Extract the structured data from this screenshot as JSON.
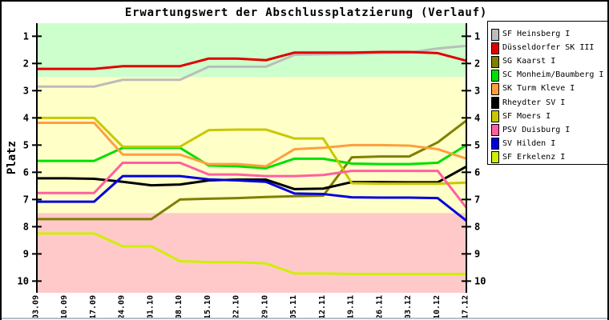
{
  "page": {
    "title": "Erwartungswert der Abschlussplatzierung (Verlauf)",
    "ylabel": "Platz"
  },
  "chart_data": {
    "type": "line",
    "title": "Erwartungswert der Abschlussplatzierung (Verlauf)",
    "ylabel": "Platz",
    "xlabel": "",
    "grid": false,
    "legend_position": "right",
    "x_labels": [
      "03.09",
      "10.09",
      "17.09",
      "24.09",
      "01.10",
      "08.10",
      "15.10",
      "22.10",
      "29.10",
      "05.11",
      "12.11",
      "19.11",
      "26.11",
      "03.12",
      "10.12",
      "17.12"
    ],
    "yticks": [
      1,
      2,
      3,
      4,
      5,
      6,
      7,
      8,
      9,
      10
    ],
    "ylim": [
      0.52,
      10.43
    ],
    "y_axis_inverted": true,
    "zones": [
      {
        "name": "promotion-zone",
        "from": 0.52,
        "to": 2.5,
        "color": "#ccffcc"
      },
      {
        "name": "midfield-zone",
        "from": 2.5,
        "to": 7.5,
        "color": "#ffffc8"
      },
      {
        "name": "relegation-zone",
        "from": 7.5,
        "to": 10.43,
        "color": "#ffc9c9"
      }
    ],
    "series": [
      {
        "name": "SF Heinsberg I",
        "color": "#bcbcbc",
        "values": [
          2.85,
          2.85,
          2.85,
          2.6,
          2.6,
          2.6,
          2.12,
          2.12,
          2.12,
          1.68,
          1.66,
          1.65,
          1.62,
          1.6,
          1.45,
          1.35
        ]
      },
      {
        "name": "Düsseldorfer SK III",
        "color": "#e00000",
        "values": [
          2.2,
          2.2,
          2.2,
          2.1,
          2.1,
          2.1,
          1.82,
          1.82,
          1.88,
          1.6,
          1.6,
          1.6,
          1.58,
          1.58,
          1.62,
          1.9
        ]
      },
      {
        "name": "SG Kaarst I",
        "color": "#7f7f00",
        "values": [
          7.72,
          7.72,
          7.72,
          7.72,
          7.72,
          7.0,
          6.97,
          6.95,
          6.91,
          6.88,
          6.86,
          5.45,
          5.42,
          5.42,
          4.9,
          4.1
        ]
      },
      {
        "name": "SC Monheim/Baumberg I",
        "color": "#00df00",
        "values": [
          5.58,
          5.58,
          5.58,
          5.1,
          5.1,
          5.1,
          5.75,
          5.78,
          5.85,
          5.5,
          5.5,
          5.68,
          5.7,
          5.7,
          5.65,
          5.0
        ]
      },
      {
        "name": "SK Turm Kleve I",
        "color": "#ff9f40",
        "values": [
          4.18,
          4.18,
          4.18,
          5.35,
          5.35,
          5.35,
          5.7,
          5.7,
          5.78,
          5.15,
          5.1,
          5.0,
          5.0,
          5.02,
          5.15,
          5.5
        ]
      },
      {
        "name": "Rheydter SV I",
        "color": "#000000",
        "values": [
          6.22,
          6.22,
          6.24,
          6.35,
          6.48,
          6.45,
          6.3,
          6.27,
          6.27,
          6.62,
          6.6,
          6.36,
          6.36,
          6.37,
          6.37,
          5.79
        ]
      },
      {
        "name": "SF Moers I",
        "color": "#c8c800",
        "values": [
          4.0,
          4.0,
          4.0,
          5.06,
          5.06,
          5.06,
          4.45,
          4.43,
          4.43,
          4.76,
          4.76,
          6.4,
          6.42,
          6.42,
          6.42,
          6.38
        ]
      },
      {
        "name": "PSV Duisburg I",
        "color": "#ff5fa2",
        "values": [
          6.76,
          6.76,
          6.76,
          5.65,
          5.65,
          5.65,
          6.08,
          6.08,
          6.14,
          6.14,
          6.1,
          5.95,
          5.95,
          5.95,
          5.95,
          7.3
        ]
      },
      {
        "name": "SV Hilden I",
        "color": "#0000df",
        "values": [
          7.08,
          7.08,
          7.08,
          6.14,
          6.14,
          6.14,
          6.26,
          6.3,
          6.35,
          6.78,
          6.8,
          6.92,
          6.93,
          6.93,
          6.95,
          7.78
        ]
      },
      {
        "name": "SF Erkelenz I",
        "color": "#cfef00",
        "values": [
          8.25,
          8.25,
          8.25,
          8.72,
          8.72,
          9.27,
          9.3,
          9.3,
          9.35,
          9.72,
          9.72,
          9.74,
          9.74,
          9.74,
          9.74,
          9.74
        ]
      }
    ]
  }
}
